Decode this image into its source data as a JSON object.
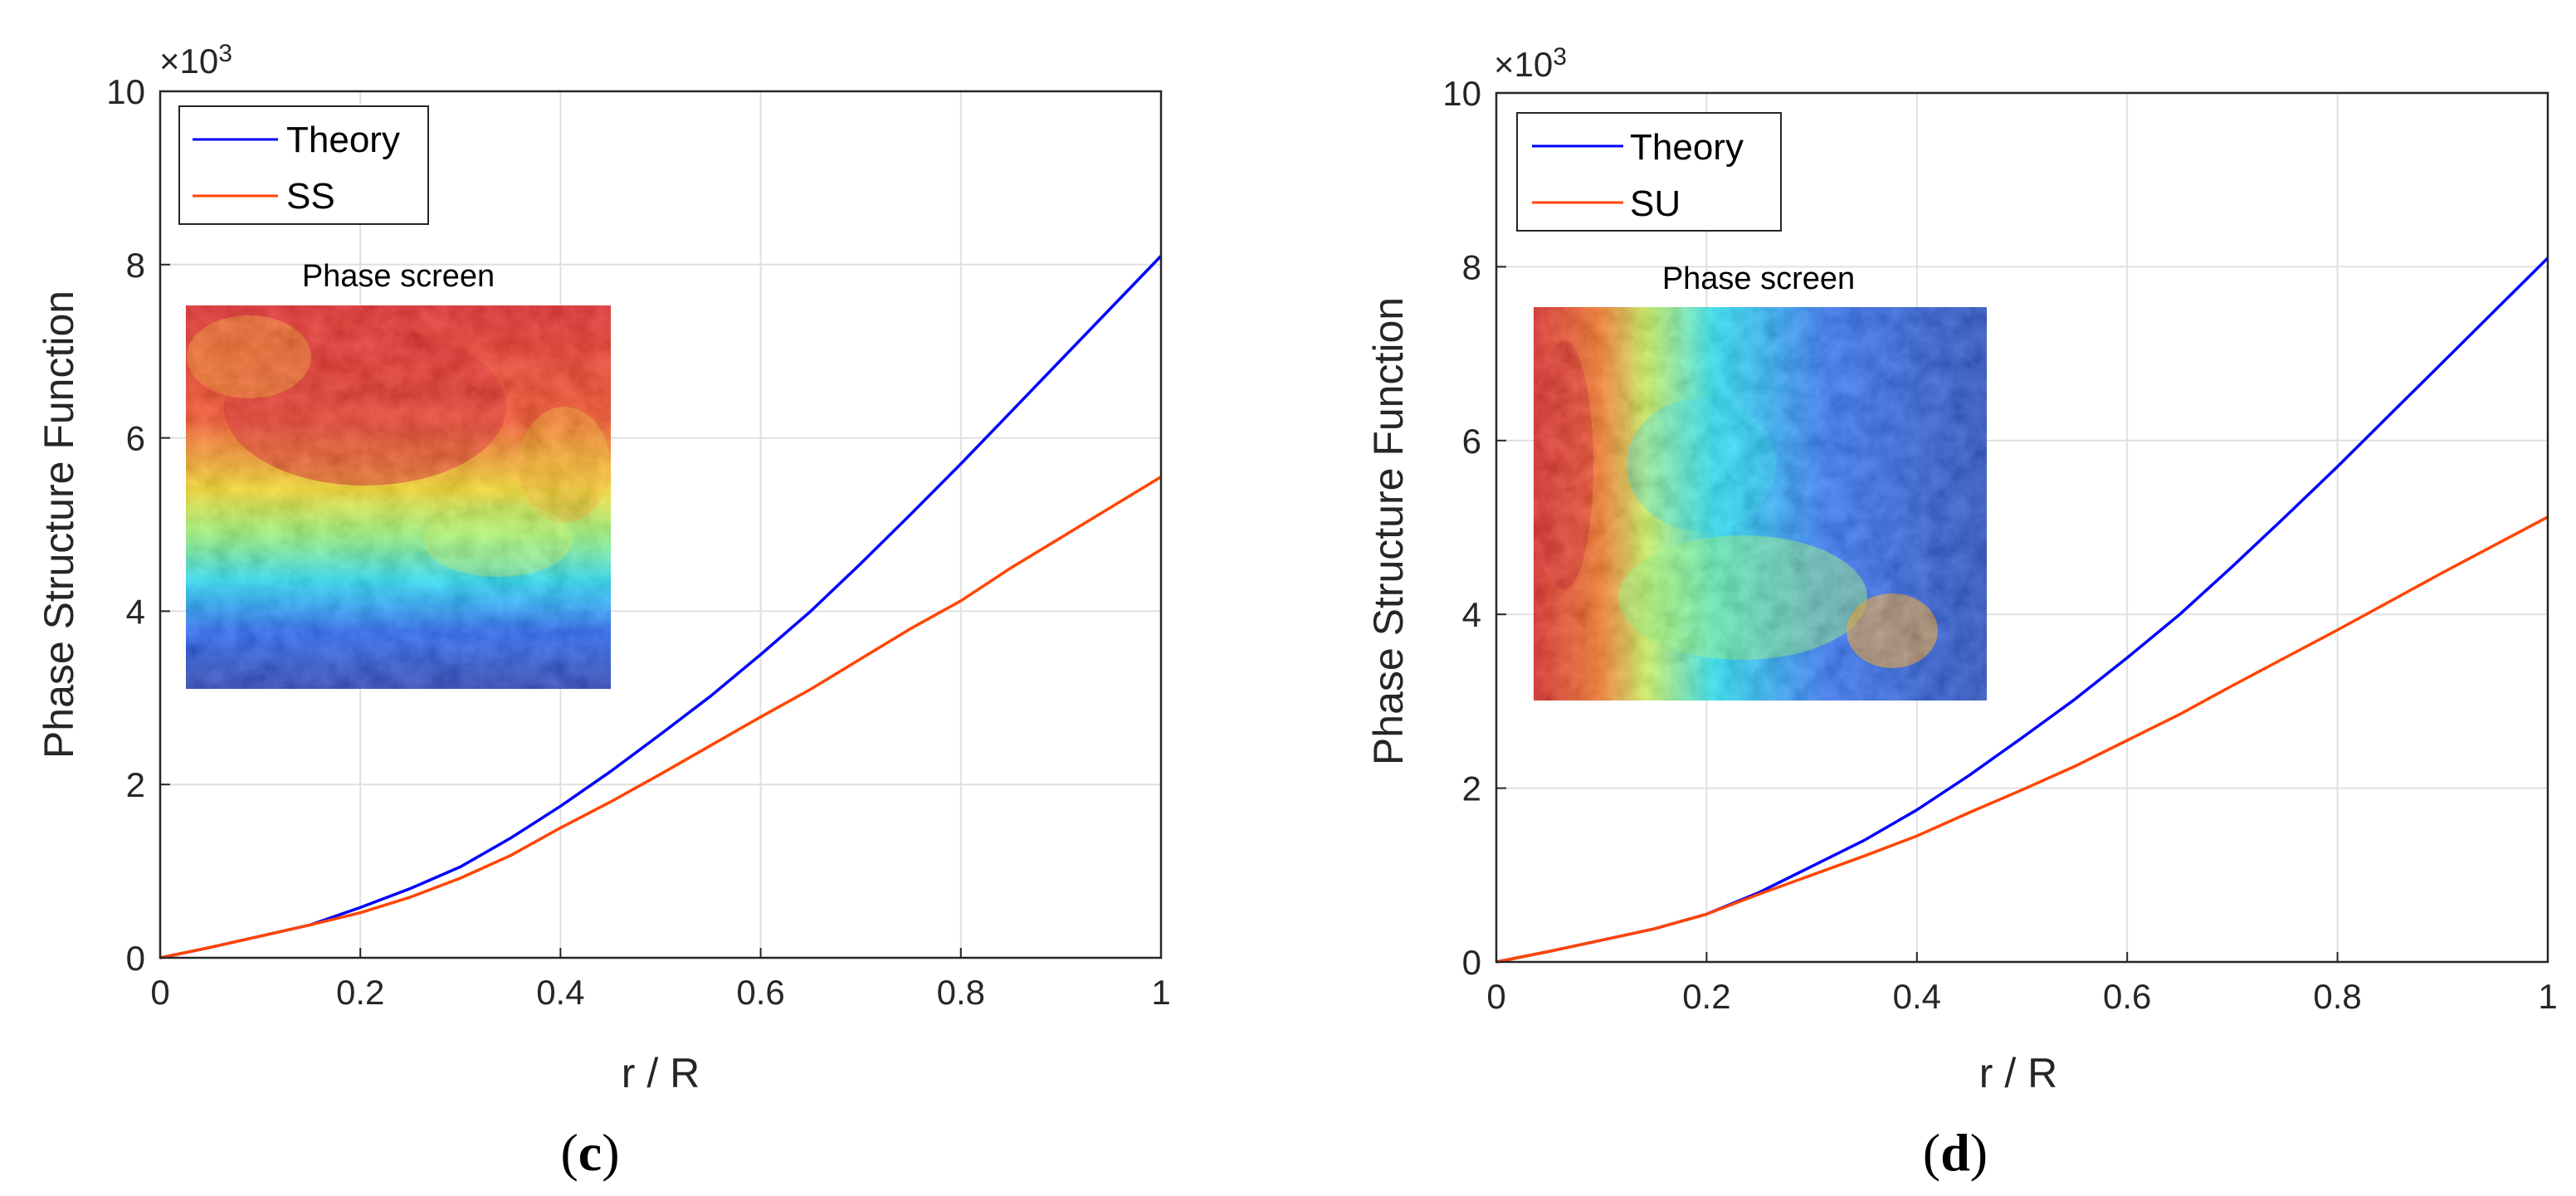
{
  "chart_data": [
    {
      "type": "line",
      "panel": "c",
      "caption_letter": "c",
      "xlabel": "r / R",
      "ylabel": "Phase Structure Function",
      "exponent_label": "×10",
      "exponent_power": "3",
      "xlim": [
        0,
        1
      ],
      "ylim": [
        0,
        10
      ],
      "x_ticks": [
        0,
        0.2,
        0.4,
        0.6,
        0.8,
        1
      ],
      "x_tick_labels": [
        "0",
        "0.2",
        "0.4",
        "0.6",
        "0.8",
        "1"
      ],
      "y_ticks": [
        0,
        2,
        4,
        6,
        8,
        10
      ],
      "y_tick_labels": [
        "0",
        "2",
        "4",
        "6",
        "8",
        "10"
      ],
      "grid": true,
      "legend_placement": "top-left",
      "inset_title": "Phase screen",
      "series": [
        {
          "name": "Theory",
          "color": "#0000ff",
          "x": [
            0,
            0.05,
            0.1,
            0.15,
            0.2,
            0.25,
            0.3,
            0.35,
            0.4,
            0.45,
            0.5,
            0.55,
            0.6,
            0.65,
            0.7,
            0.75,
            0.8,
            0.85,
            0.9,
            0.95,
            1.0
          ],
          "values": [
            0,
            0.12,
            0.25,
            0.38,
            0.58,
            0.8,
            1.05,
            1.38,
            1.75,
            2.15,
            2.58,
            3.02,
            3.5,
            4.0,
            4.55,
            5.12,
            5.7,
            6.3,
            6.9,
            7.5,
            8.1
          ]
        },
        {
          "name": "SS",
          "color": "#ff4500",
          "x": [
            0,
            0.05,
            0.1,
            0.15,
            0.2,
            0.25,
            0.3,
            0.35,
            0.4,
            0.45,
            0.5,
            0.55,
            0.6,
            0.65,
            0.7,
            0.75,
            0.8,
            0.85,
            0.9,
            0.95,
            1.0
          ],
          "values": [
            0,
            0.12,
            0.25,
            0.38,
            0.52,
            0.7,
            0.92,
            1.18,
            1.5,
            1.8,
            2.12,
            2.45,
            2.78,
            3.1,
            3.45,
            3.8,
            4.12,
            4.5,
            4.85,
            5.2,
            5.55
          ]
        }
      ]
    },
    {
      "type": "line",
      "panel": "d",
      "caption_letter": "d",
      "xlabel": "r / R",
      "ylabel": "Phase Structure Function",
      "exponent_label": "×10",
      "exponent_power": "3",
      "xlim": [
        0,
        1
      ],
      "ylim": [
        0,
        10
      ],
      "x_ticks": [
        0,
        0.2,
        0.4,
        0.6,
        0.8,
        1
      ],
      "x_tick_labels": [
        "0",
        "0.2",
        "0.4",
        "0.6",
        "0.8",
        "1"
      ],
      "y_ticks": [
        0,
        2,
        4,
        6,
        8,
        10
      ],
      "y_tick_labels": [
        "0",
        "2",
        "4",
        "6",
        "8",
        "10"
      ],
      "grid": true,
      "legend_placement": "top-left",
      "inset_title": "Phase screen",
      "series": [
        {
          "name": "Theory",
          "color": "#0000ff",
          "x": [
            0,
            0.05,
            0.1,
            0.15,
            0.2,
            0.25,
            0.3,
            0.35,
            0.4,
            0.45,
            0.5,
            0.55,
            0.6,
            0.65,
            0.7,
            0.75,
            0.8,
            0.85,
            0.9,
            0.95,
            1.0
          ],
          "values": [
            0,
            0.12,
            0.25,
            0.38,
            0.55,
            0.8,
            1.1,
            1.4,
            1.75,
            2.15,
            2.58,
            3.02,
            3.5,
            4.0,
            4.55,
            5.12,
            5.7,
            6.3,
            6.9,
            7.5,
            8.1
          ]
        },
        {
          "name": "SU",
          "color": "#ff4500",
          "x": [
            0,
            0.05,
            0.1,
            0.15,
            0.2,
            0.25,
            0.3,
            0.35,
            0.4,
            0.45,
            0.5,
            0.55,
            0.6,
            0.65,
            0.7,
            0.75,
            0.8,
            0.85,
            0.9,
            0.95,
            1.0
          ],
          "values": [
            0,
            0.12,
            0.25,
            0.38,
            0.55,
            0.78,
            1.0,
            1.22,
            1.45,
            1.72,
            1.98,
            2.25,
            2.55,
            2.85,
            3.18,
            3.5,
            3.82,
            4.15,
            4.48,
            4.8,
            5.12
          ]
        }
      ]
    }
  ]
}
